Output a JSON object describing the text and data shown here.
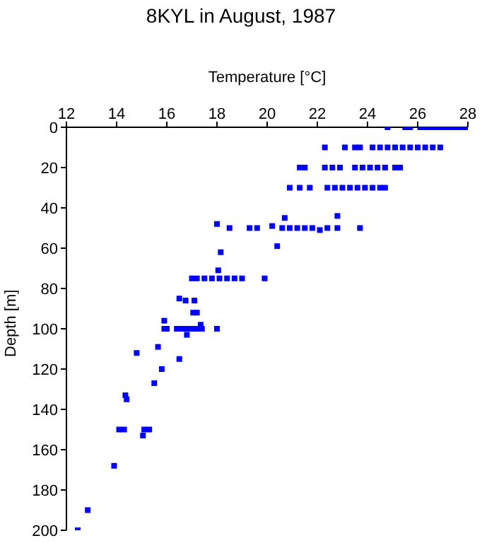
{
  "chart_data": {
    "type": "scatter",
    "title": "8KYL in August, 1987",
    "xlabel": "Temperature [°C]",
    "ylabel": "Depth [m]",
    "xlim": [
      12,
      28
    ],
    "xticks": [
      12,
      14,
      16,
      18,
      20,
      22,
      24,
      26,
      28
    ],
    "ylim": [
      200,
      0
    ],
    "yticks": [
      0,
      20,
      40,
      60,
      80,
      100,
      120,
      140,
      160,
      180,
      200
    ],
    "grid": false,
    "legend": false,
    "marker": "square",
    "series": [
      {
        "color": "#0000ff",
        "x": [
          24.8,
          25.5,
          25.7,
          26.1,
          26.3,
          26.5,
          26.7,
          26.9,
          27.1,
          27.3,
          27.5,
          27.7,
          27.9,
          22.3,
          23.1,
          23.5,
          23.7,
          24.2,
          24.5,
          24.8,
          25.1,
          25.4,
          25.7,
          26.0,
          26.3,
          26.6,
          26.9,
          21.3,
          21.5,
          22.3,
          22.6,
          22.9,
          23.5,
          23.8,
          24.1,
          24.4,
          24.7,
          25.1,
          25.3,
          20.9,
          21.3,
          21.7,
          22.4,
          22.7,
          23.0,
          23.3,
          23.6,
          23.9,
          24.2,
          24.5,
          24.7,
          20.7,
          22.8,
          18.0,
          18.5,
          19.3,
          19.6,
          20.2,
          20.6,
          20.9,
          21.2,
          21.5,
          21.8,
          22.1,
          22.4,
          22.8,
          23.7,
          20.4,
          18.15,
          18.05,
          17.0,
          17.2,
          17.5,
          17.8,
          18.1,
          18.4,
          18.7,
          19.0,
          19.9,
          16.5,
          16.75,
          17.1,
          17.05,
          17.2,
          15.9,
          17.35,
          15.9,
          16.0,
          16.4,
          16.6,
          16.8,
          17.0,
          17.2,
          17.4,
          18.0,
          16.8,
          15.65,
          14.8,
          16.5,
          15.8,
          15.5,
          14.35,
          14.4,
          14.1,
          14.3,
          15.1,
          15.3,
          15.05,
          13.9,
          12.85,
          12.45
        ],
        "values": [
          0,
          0,
          0,
          0,
          0,
          0,
          0,
          0,
          0,
          0,
          0,
          0,
          0,
          10,
          10,
          10,
          10,
          10,
          10,
          10,
          10,
          10,
          10,
          10,
          10,
          10,
          10,
          20,
          20,
          20,
          20,
          20,
          20,
          20,
          20,
          20,
          20,
          20,
          20,
          30,
          30,
          30,
          30,
          30,
          30,
          30,
          30,
          30,
          30,
          30,
          30,
          45,
          44,
          48,
          50,
          50,
          50,
          49,
          50,
          50,
          50,
          50,
          50,
          51,
          50,
          50,
          50,
          59,
          62,
          71,
          75,
          75,
          75,
          75,
          75,
          75,
          75,
          75,
          75,
          85,
          86,
          86,
          92,
          92,
          96,
          98,
          100,
          100,
          100,
          100,
          100,
          100,
          100,
          100,
          100,
          103,
          109,
          112,
          115,
          120,
          127,
          133,
          135,
          150,
          150,
          150,
          150,
          153,
          168,
          190,
          200
        ]
      }
    ]
  }
}
